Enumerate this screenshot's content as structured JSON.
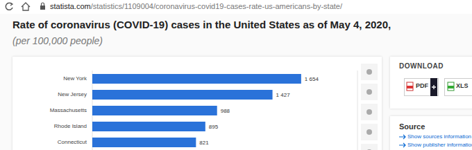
{
  "page": {
    "url": "statista.com/statistics/1109004/coronavirus-covid19-cases-rate-us-americans-by-state/",
    "download": "DOWNLOAD",
    "buttons": [
      "PDF",
      "XLS"
    ],
    "source": {
      "title": "Source",
      "links": [
        "Show sources information",
        "Show publisher information"
      ]
    }
  },
  "chart_data": {
    "type": "bar",
    "orientation": "horizontal",
    "title": "Rate of coronavirus (COVID-19) cases in the United States as of May 4, 2020,",
    "subtitle": "(per 100,000 people)",
    "categories": [
      "New York",
      "New Jersey",
      "Massachusetts",
      "Rhode Island",
      "Connecticut"
    ],
    "values": [
      1654,
      1427,
      988,
      895,
      821
    ],
    "value_labels": [
      "1 654",
      "1 427",
      "988",
      "895",
      "821"
    ],
    "data_labels": true,
    "color": "#2a72d9",
    "xlim": [
      0,
      2100
    ],
    "xticks": [
      0,
      350,
      700,
      1050,
      1400,
      1750,
      2100
    ],
    "grid": true,
    "tick_labels": "y"
  }
}
